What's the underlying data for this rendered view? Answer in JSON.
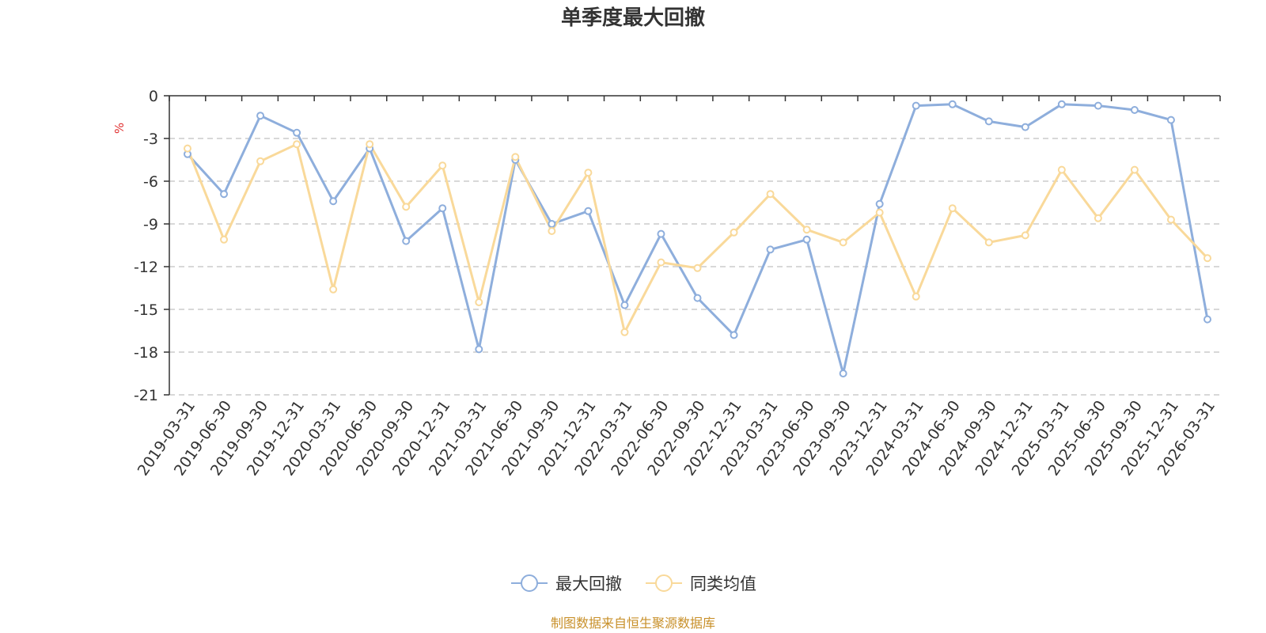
{
  "chart_data": {
    "type": "line",
    "title": "单季度最大回撤",
    "ylabel": "%",
    "xlabel": "",
    "ylim": [
      -21,
      0
    ],
    "yticks": [
      0,
      -3,
      -6,
      -9,
      -12,
      -15,
      -18,
      -21
    ],
    "grid": true,
    "legend_position": "bottom-center",
    "categories": [
      "2019-03-31",
      "2019-06-30",
      "2019-09-30",
      "2019-12-31",
      "2020-03-31",
      "2020-06-30",
      "2020-09-30",
      "2020-12-31",
      "2021-03-31",
      "2021-06-30",
      "2021-09-30",
      "2021-12-31",
      "2022-03-31",
      "2022-06-30",
      "2022-09-30",
      "2022-12-31",
      "2023-03-31",
      "2023-06-30",
      "2023-09-30",
      "2023-12-31",
      "2024-03-31",
      "2024-06-30",
      "2024-09-30",
      "2024-12-31",
      "2025-03-31",
      "2025-06-30",
      "2025-09-30",
      "2025-12-31",
      "2026-03-31"
    ],
    "series": [
      {
        "name": "最大回撤",
        "color": "#8eaedc",
        "values": [
          -4.1,
          -6.9,
          -1.4,
          -2.6,
          -7.4,
          -3.7,
          -10.2,
          -7.9,
          -17.8,
          -4.5,
          -9.0,
          -8.1,
          -14.7,
          -9.7,
          -14.2,
          -16.8,
          -10.8,
          -10.1,
          -19.5,
          -7.6,
          -0.7,
          -0.6,
          -1.8,
          -2.2,
          -0.6,
          -0.7,
          -1.0,
          -1.7,
          -15.7
        ]
      },
      {
        "name": "同类均值",
        "color": "#f9d99a",
        "values": [
          -3.7,
          -10.1,
          -4.6,
          -3.4,
          -13.6,
          -3.4,
          -7.8,
          -4.9,
          -14.5,
          -4.3,
          -9.5,
          -5.4,
          -16.6,
          -11.7,
          -12.1,
          -9.6,
          -6.9,
          -9.4,
          -10.3,
          -8.2,
          -14.1,
          -7.9,
          -10.3,
          -9.8,
          -5.2,
          -8.6,
          -5.2,
          -8.7,
          -11.4
        ]
      }
    ]
  },
  "legend": {
    "items": [
      "最大回撤",
      "同类均值"
    ]
  },
  "source_note": "制图数据来自恒生聚源数据库"
}
